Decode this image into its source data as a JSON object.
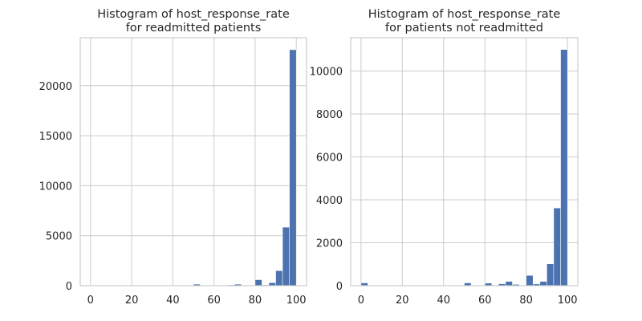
{
  "chart_data": [
    {
      "type": "histogram",
      "title_lines": [
        "Histogram of host_response_rate",
        "for readmitted patients"
      ],
      "xlabel": "",
      "ylabel": "",
      "xlim": [
        -5,
        105
      ],
      "ylim": [
        0,
        24800
      ],
      "x_ticks": [
        0,
        20,
        40,
        60,
        80,
        100
      ],
      "y_ticks": [
        0,
        5000,
        10000,
        15000,
        20000
      ],
      "grid": true,
      "bins": [
        {
          "x0": 0,
          "x1": 3.33,
          "count": 60
        },
        {
          "x0": 3.33,
          "x1": 6.67,
          "count": 0
        },
        {
          "x0": 6.67,
          "x1": 10,
          "count": 0
        },
        {
          "x0": 10,
          "x1": 13.33,
          "count": 0
        },
        {
          "x0": 13.33,
          "x1": 16.67,
          "count": 0
        },
        {
          "x0": 16.67,
          "x1": 20,
          "count": 0
        },
        {
          "x0": 20,
          "x1": 23.33,
          "count": 0
        },
        {
          "x0": 23.33,
          "x1": 26.67,
          "count": 0
        },
        {
          "x0": 26.67,
          "x1": 30,
          "count": 20
        },
        {
          "x0": 30,
          "x1": 33.33,
          "count": 0
        },
        {
          "x0": 33.33,
          "x1": 36.67,
          "count": 0
        },
        {
          "x0": 36.67,
          "x1": 40,
          "count": 0
        },
        {
          "x0": 40,
          "x1": 43.33,
          "count": 20
        },
        {
          "x0": 43.33,
          "x1": 46.67,
          "count": 0
        },
        {
          "x0": 46.67,
          "x1": 50,
          "count": 0
        },
        {
          "x0": 50,
          "x1": 53.33,
          "count": 150
        },
        {
          "x0": 53.33,
          "x1": 56.67,
          "count": 30
        },
        {
          "x0": 56.67,
          "x1": 60,
          "count": 20
        },
        {
          "x0": 60,
          "x1": 63.33,
          "count": 60
        },
        {
          "x0": 63.33,
          "x1": 66.67,
          "count": 30
        },
        {
          "x0": 66.67,
          "x1": 70,
          "count": 80
        },
        {
          "x0": 70,
          "x1": 73.33,
          "count": 150
        },
        {
          "x0": 73.33,
          "x1": 76.67,
          "count": 40
        },
        {
          "x0": 76.67,
          "x1": 80,
          "count": 60
        },
        {
          "x0": 80,
          "x1": 83.33,
          "count": 600
        },
        {
          "x0": 83.33,
          "x1": 86.67,
          "count": 80
        },
        {
          "x0": 86.67,
          "x1": 90,
          "count": 300
        },
        {
          "x0": 90,
          "x1": 93.33,
          "count": 1500
        },
        {
          "x0": 93.33,
          "x1": 96.67,
          "count": 5850
        },
        {
          "x0": 96.67,
          "x1": 100,
          "count": 23600
        }
      ]
    },
    {
      "type": "histogram",
      "title_lines": [
        "Histogram of host_response_rate",
        "for patients not readmitted"
      ],
      "xlabel": "",
      "ylabel": "",
      "xlim": [
        -5,
        105
      ],
      "ylim": [
        0,
        11550
      ],
      "x_ticks": [
        0,
        20,
        40,
        60,
        80,
        100
      ],
      "y_ticks": [
        0,
        2000,
        4000,
        6000,
        8000,
        10000
      ],
      "grid": true,
      "bins": [
        {
          "x0": 0,
          "x1": 3.33,
          "count": 130
        },
        {
          "x0": 3.33,
          "x1": 6.67,
          "count": 0
        },
        {
          "x0": 6.67,
          "x1": 10,
          "count": 0
        },
        {
          "x0": 10,
          "x1": 13.33,
          "count": 0
        },
        {
          "x0": 13.33,
          "x1": 16.67,
          "count": 0
        },
        {
          "x0": 16.67,
          "x1": 20,
          "count": 0
        },
        {
          "x0": 20,
          "x1": 23.33,
          "count": 0
        },
        {
          "x0": 23.33,
          "x1": 26.67,
          "count": 0
        },
        {
          "x0": 26.67,
          "x1": 30,
          "count": 10
        },
        {
          "x0": 30,
          "x1": 33.33,
          "count": 0
        },
        {
          "x0": 33.33,
          "x1": 36.67,
          "count": 0
        },
        {
          "x0": 36.67,
          "x1": 40,
          "count": 0
        },
        {
          "x0": 40,
          "x1": 43.33,
          "count": 10
        },
        {
          "x0": 43.33,
          "x1": 46.67,
          "count": 0
        },
        {
          "x0": 46.67,
          "x1": 50,
          "count": 0
        },
        {
          "x0": 50,
          "x1": 53.33,
          "count": 130
        },
        {
          "x0": 53.33,
          "x1": 56.67,
          "count": 20
        },
        {
          "x0": 56.67,
          "x1": 60,
          "count": 10
        },
        {
          "x0": 60,
          "x1": 63.33,
          "count": 120
        },
        {
          "x0": 63.33,
          "x1": 66.67,
          "count": 30
        },
        {
          "x0": 66.67,
          "x1": 70,
          "count": 90
        },
        {
          "x0": 70,
          "x1": 73.33,
          "count": 200
        },
        {
          "x0": 73.33,
          "x1": 76.67,
          "count": 60
        },
        {
          "x0": 76.67,
          "x1": 80,
          "count": 20
        },
        {
          "x0": 80,
          "x1": 83.33,
          "count": 480
        },
        {
          "x0": 83.33,
          "x1": 86.67,
          "count": 80
        },
        {
          "x0": 86.67,
          "x1": 90,
          "count": 200
        },
        {
          "x0": 90,
          "x1": 93.33,
          "count": 1020
        },
        {
          "x0": 93.33,
          "x1": 96.67,
          "count": 3620
        },
        {
          "x0": 96.67,
          "x1": 100,
          "count": 11000
        }
      ]
    }
  ]
}
